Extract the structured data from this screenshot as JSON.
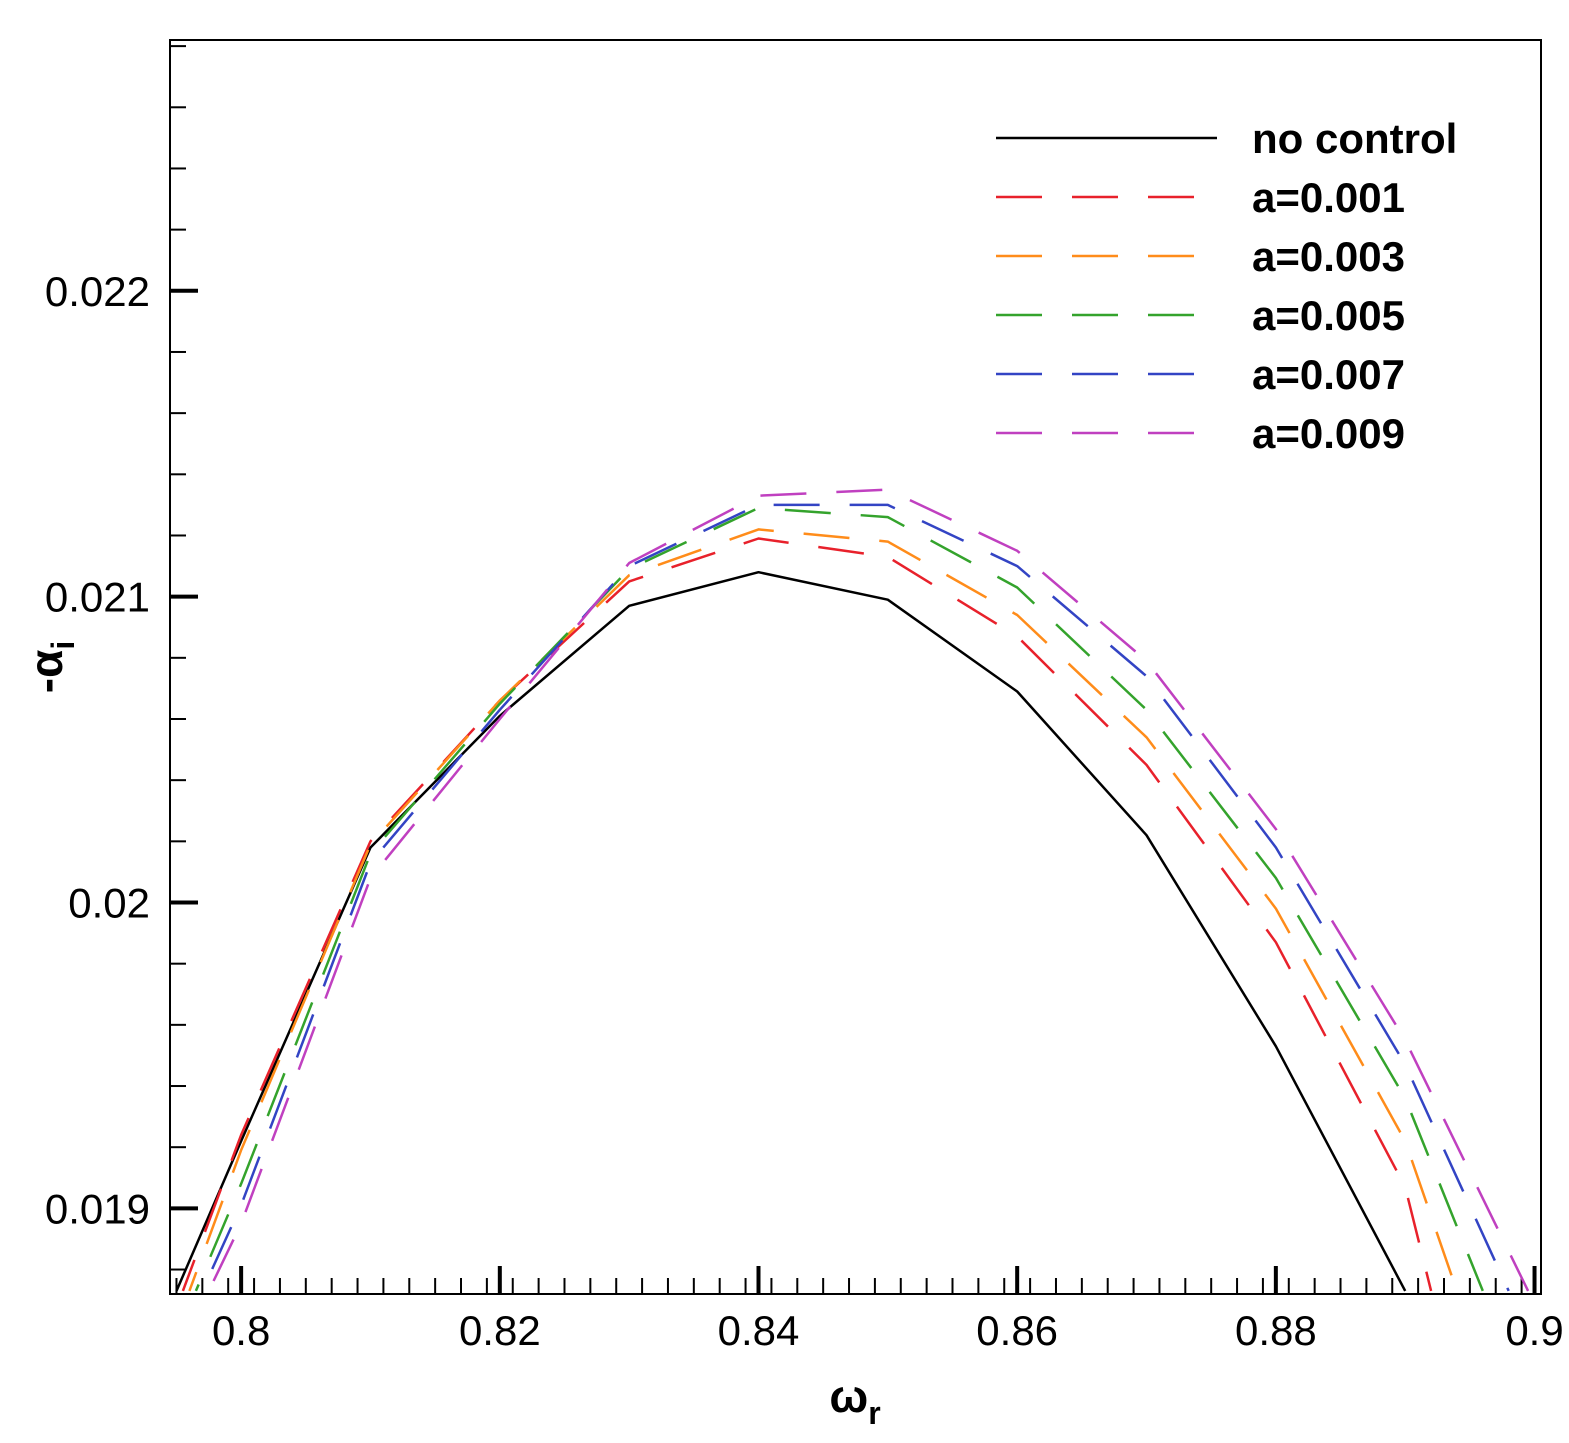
{
  "chart_data": {
    "type": "line",
    "xlabel": "ω",
    "xlabel_sub": "r",
    "ylabel": "-α",
    "ylabel_sub": "i",
    "xlim": [
      0.7945,
      0.9005
    ],
    "ylim": [
      0.01872,
      0.02282
    ],
    "xticks": [
      0.8,
      0.82,
      0.84,
      0.86,
      0.88,
      0.9
    ],
    "xtick_labels": [
      "0.8",
      "0.82",
      "0.84",
      "0.86",
      "0.88",
      "0.9"
    ],
    "yticks": [
      0.019,
      0.02,
      0.021,
      0.022
    ],
    "ytick_labels": [
      "0.019",
      "0.02",
      "0.021",
      "0.022"
    ],
    "grid": false,
    "legend_position": "top-right",
    "series": [
      {
        "name": "no control",
        "color": "#000000",
        "dash": "solid",
        "x": [
          0.795,
          0.8,
          0.81,
          0.82,
          0.83,
          0.84,
          0.85,
          0.86,
          0.87,
          0.88,
          0.89
        ],
        "y": [
          0.01873,
          0.01922,
          0.02018,
          0.02061,
          0.02097,
          0.02108,
          0.02099,
          0.02069,
          0.02022,
          0.01953,
          0.01873
        ]
      },
      {
        "name": "a=0.001",
        "color": "#e8212b",
        "dash": "dashed",
        "x": [
          0.7955,
          0.8,
          0.81,
          0.82,
          0.83,
          0.84,
          0.85,
          0.86,
          0.87,
          0.88,
          0.89,
          0.892
        ],
        "y": [
          0.01873,
          0.01924,
          0.0202,
          0.02066,
          0.02105,
          0.02119,
          0.02113,
          0.02087,
          0.02045,
          0.01987,
          0.01907,
          0.01873
        ]
      },
      {
        "name": "a=0.003",
        "color": "#ff8c1a",
        "dash": "dashed",
        "x": [
          0.796,
          0.8,
          0.81,
          0.82,
          0.83,
          0.84,
          0.85,
          0.86,
          0.87,
          0.88,
          0.89,
          0.894
        ],
        "y": [
          0.01873,
          0.01919,
          0.02019,
          0.02066,
          0.02107,
          0.02122,
          0.02118,
          0.02094,
          0.02054,
          0.01998,
          0.01922,
          0.01873
        ]
      },
      {
        "name": "a=0.005",
        "color": "#34a32c",
        "dash": "dashed",
        "x": [
          0.7965,
          0.8,
          0.81,
          0.82,
          0.83,
          0.84,
          0.85,
          0.86,
          0.87,
          0.88,
          0.89,
          0.896
        ],
        "y": [
          0.01873,
          0.01908,
          0.02016,
          0.02065,
          0.02109,
          0.02129,
          0.02126,
          0.02103,
          0.02063,
          0.02008,
          0.01936,
          0.01873
        ]
      },
      {
        "name": "a=0.007",
        "color": "#3344c4",
        "dash": "dashed",
        "x": [
          0.797,
          0.8,
          0.81,
          0.82,
          0.83,
          0.84,
          0.85,
          0.86,
          0.87,
          0.88,
          0.89,
          0.898
        ],
        "y": [
          0.01873,
          0.01901,
          0.02013,
          0.02063,
          0.0211,
          0.0213,
          0.0213,
          0.0211,
          0.02074,
          0.02018,
          0.01947,
          0.01873
        ]
      },
      {
        "name": "a=0.009",
        "color": "#c040c0",
        "dash": "dashed",
        "x": [
          0.7975,
          0.8,
          0.81,
          0.82,
          0.83,
          0.84,
          0.85,
          0.86,
          0.87,
          0.88,
          0.89,
          0.8995
        ],
        "y": [
          0.01873,
          0.01895,
          0.02008,
          0.0206,
          0.02111,
          0.02133,
          0.02135,
          0.02115,
          0.02079,
          0.02024,
          0.01955,
          0.01873
        ]
      }
    ]
  }
}
